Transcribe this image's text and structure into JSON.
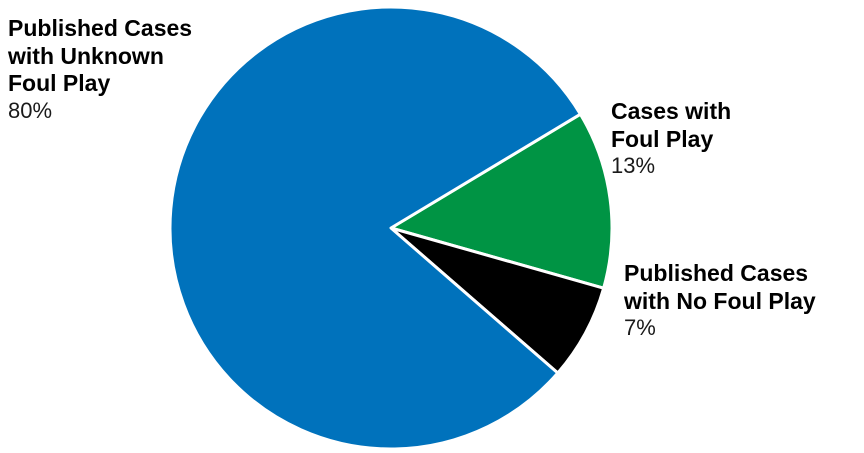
{
  "chart_data": {
    "type": "pie",
    "start_angle_deg": 90,
    "direction": "clockwise",
    "slices": [
      {
        "label_lines": [
          "Cases with",
          "Foul Play"
        ],
        "value_label": "13%",
        "value": 13,
        "color": "#009444"
      },
      {
        "label_lines": [
          "Published Cases",
          "with No Foul Play"
        ],
        "value_label": "7%",
        "value": 7,
        "color": "#000000"
      },
      {
        "label_lines": [
          "Published Cases",
          "with Unknown",
          "Foul Play"
        ],
        "value_label": "80%",
        "value": 80,
        "color": "#0072BC"
      }
    ]
  }
}
